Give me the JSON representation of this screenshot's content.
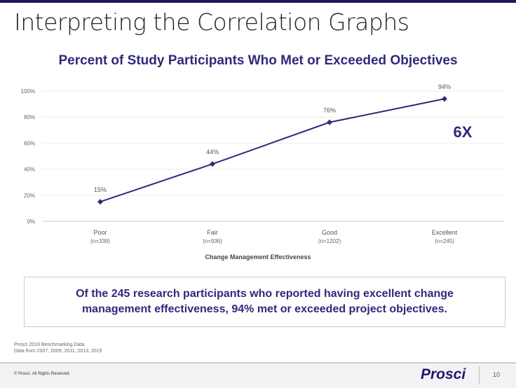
{
  "slide": {
    "title": "Interpreting the Correlation Graphs",
    "callout": "Of the 245 research participants who reported having excellent change management effectiveness, 94% met or exceeded project objectives.",
    "source": [
      "Prosci 2016 Benchmarking Data",
      "Data from 2007, 2009, 2011, 2013, 2015"
    ],
    "copyright": "© Prosci. All Rights Reserved.",
    "logo": "Prosci",
    "page_number": "10",
    "badge": "6X"
  },
  "colors": {
    "accent": "#2e2a7a",
    "line": "#2e2a7a"
  },
  "chart_data": {
    "type": "line",
    "title": "Percent of Study Participants Who Met or Exceeded Objectives",
    "xlabel": "Change Management Effectiveness",
    "ylabel": "",
    "categories": [
      "Poor",
      "Fair",
      "Good",
      "Excellent"
    ],
    "category_sublabels": [
      "(n=338)",
      "(n=936)",
      "(n=1202)",
      "(n=245)"
    ],
    "values": [
      15,
      44,
      76,
      94
    ],
    "data_labels": [
      "15%",
      "44%",
      "76%",
      "94%"
    ],
    "ylim": [
      0,
      100
    ],
    "yticks": [
      0,
      20,
      40,
      60,
      80,
      100
    ],
    "ytick_labels": [
      "0%",
      "20%",
      "40%",
      "60%",
      "80%",
      "100%"
    ],
    "grid": true
  }
}
